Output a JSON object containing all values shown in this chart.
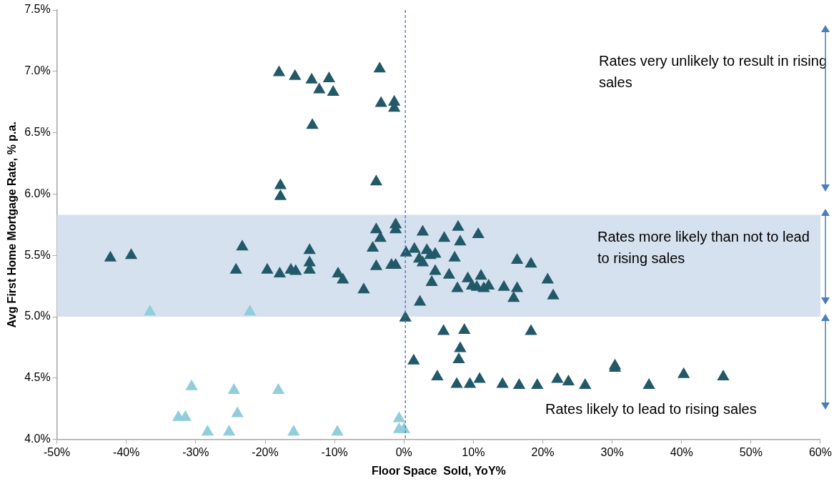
{
  "chart_data": {
    "type": "scatter",
    "xlabel": "Floor Space  Sold, YoY%",
    "ylabel": "Avg First Home Mortgage Rate, % p.a.",
    "xlim": [
      -50,
      60
    ],
    "ylim": [
      4,
      7.5
    ],
    "xticks": [
      {
        "value": -50,
        "label": "-50%"
      },
      {
        "value": -40,
        "label": "-40%"
      },
      {
        "value": -30,
        "label": "-30%"
      },
      {
        "value": -20,
        "label": "-20%"
      },
      {
        "value": -10,
        "label": "-10%"
      },
      {
        "value": 0,
        "label": "0%"
      },
      {
        "value": 10,
        "label": "10%"
      },
      {
        "value": 20,
        "label": "20%"
      },
      {
        "value": 30,
        "label": "30%"
      },
      {
        "value": 40,
        "label": "40%"
      },
      {
        "value": 50,
        "label": "50%"
      },
      {
        "value": 60,
        "label": "60%"
      }
    ],
    "yticks": [
      {
        "value": 4,
        "label": "4.0%"
      },
      {
        "value": 4.5,
        "label": "4.5%"
      },
      {
        "value": 5,
        "label": "5.0%"
      },
      {
        "value": 5.5,
        "label": "5.5%"
      },
      {
        "value": 6,
        "label": "6.0%"
      },
      {
        "value": 6.5,
        "label": "6.5%"
      },
      {
        "value": 7,
        "label": "7.0%"
      },
      {
        "value": 7.5,
        "label": "7.5%"
      }
    ],
    "grid": false,
    "legend": false,
    "marker": "triangle",
    "series": [
      {
        "color": "#215968",
        "x": [
          -18,
          -15.7,
          -13.3,
          -12.2,
          -10.8,
          -10.2,
          -3.5,
          -3.3,
          -1.4,
          -1.4,
          -13.2,
          -17.8,
          -17.8,
          -4,
          -42.3,
          -39.3,
          -23.3,
          -24.2,
          -19.7,
          -17.9,
          -16.3,
          -15.6,
          -13.6,
          -13.6,
          -13.6,
          -9.5,
          -8.8,
          -5.8,
          -4,
          -3.4,
          -4.5,
          -4,
          -1.2,
          -1.2,
          -1.8,
          -1.2,
          0.3,
          1.5,
          2.7,
          2.2,
          2.7,
          3.3,
          3.8,
          4.5,
          4.5,
          4,
          2.3,
          5.8,
          6.5,
          7.8,
          7.3,
          8.1,
          7.7,
          9.2,
          9.8,
          10.7,
          10.5,
          11.1,
          11.5,
          12.2,
          14.4,
          15.8,
          16.3,
          16.3,
          18.3,
          20.7,
          21.5,
          0.2,
          1.4,
          5.7,
          8.7,
          8.1,
          7.9,
          18.3,
          4.8,
          7.6,
          9.5,
          10.9,
          14.2,
          16.6,
          19.2,
          22.1,
          23.7,
          26.1,
          30.4,
          30.4,
          35.3,
          40.3,
          46
        ],
        "values": [
          6.99,
          6.96,
          6.93,
          6.85,
          6.94,
          6.83,
          7.02,
          6.74,
          6.75,
          6.7,
          6.56,
          6.07,
          5.98,
          6.1,
          5.48,
          5.5,
          5.57,
          5.38,
          5.38,
          5.35,
          5.38,
          5.37,
          5.54,
          5.44,
          5.38,
          5.35,
          5.3,
          5.22,
          5.71,
          5.64,
          5.56,
          5.41,
          5.71,
          5.75,
          5.42,
          5.42,
          5.52,
          5.55,
          5.69,
          5.47,
          5.44,
          5.54,
          5.5,
          5.51,
          5.37,
          5.28,
          5.12,
          5.64,
          5.34,
          5.73,
          5.48,
          5.61,
          5.23,
          5.31,
          5.25,
          5.67,
          5.24,
          5.33,
          5.23,
          5.25,
          5.24,
          5.15,
          5.46,
          5.23,
          5.43,
          5.3,
          5.17,
          4.99,
          4.64,
          4.88,
          4.89,
          4.74,
          4.65,
          4.88,
          4.51,
          4.45,
          4.45,
          4.49,
          4.45,
          4.44,
          4.44,
          4.49,
          4.47,
          4.44,
          4.6,
          4.58,
          4.44,
          4.53,
          4.51
        ]
      },
      {
        "color": "#92cddc",
        "x": [
          -36.6,
          -22.2,
          -30.6,
          -24.5,
          -18.1,
          -24,
          -32.5,
          -31.5,
          -28.3,
          -25.2,
          -15.9,
          -9.6,
          -0.7,
          -0.7,
          0
        ],
        "values": [
          5.04,
          5.04,
          4.43,
          4.4,
          4.4,
          4.21,
          4.18,
          4.18,
          4.06,
          4.06,
          4.06,
          4.06,
          4.17,
          4.08,
          4.08
        ]
      }
    ],
    "ref_lines": [
      {
        "axis": "x",
        "value": 0.2,
        "color": "#4472c4",
        "line_style": "dashed"
      }
    ],
    "bands": [
      {
        "axis": "y",
        "from": 5,
        "to": 5.83,
        "color": "#d6e1ef"
      }
    ],
    "annotations": [
      "Rates very unlikely to result in rising sales",
      "Rates more likely than not to lead to rising sales",
      "Rates likely to lead to rising sales"
    ]
  }
}
